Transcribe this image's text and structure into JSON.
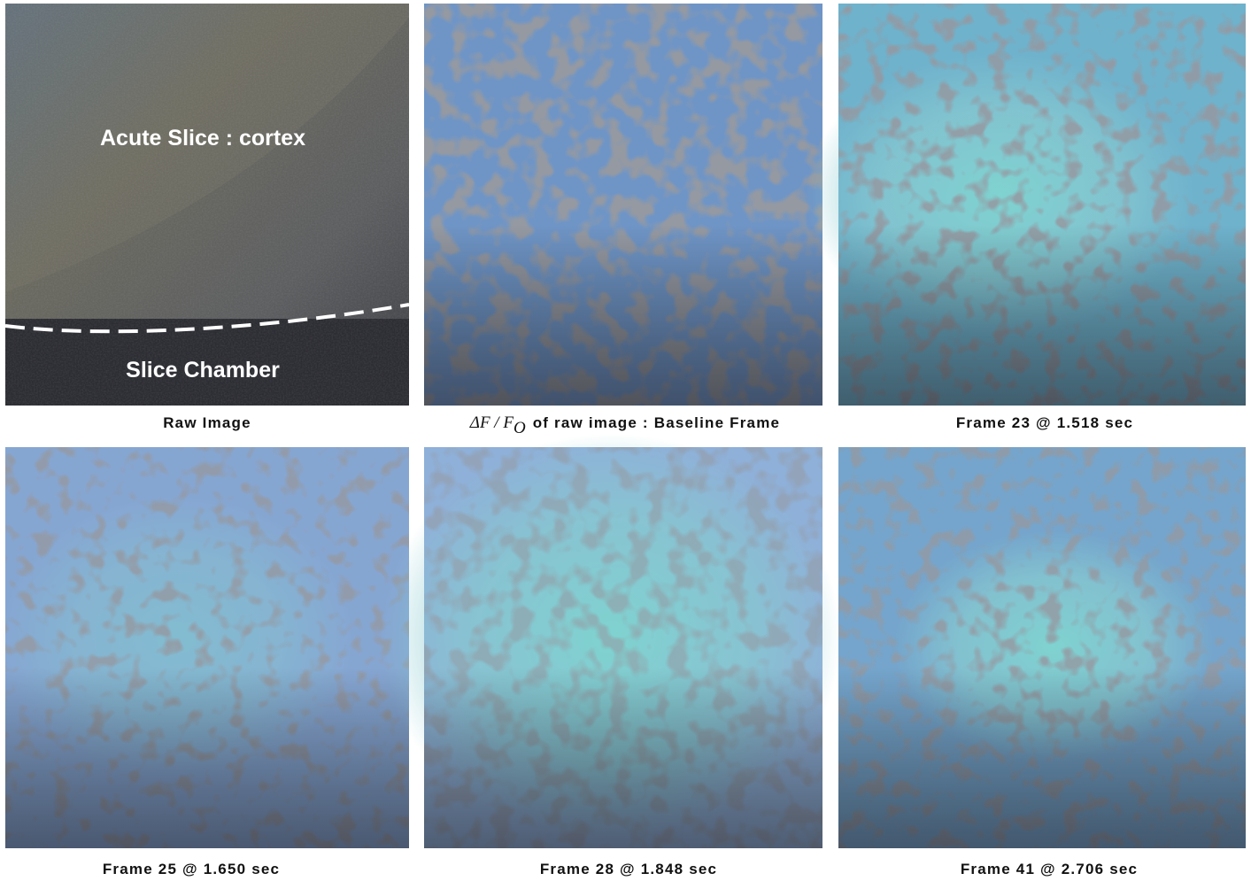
{
  "panels": [
    {
      "caption": {
        "text": "Raw Image"
      },
      "labels": [
        "Acute Slice : cortex",
        "Slice Chamber"
      ]
    },
    {
      "caption": {
        "math": "ΔF / F",
        "sub": "O",
        "text": "of raw image : Baseline Frame"
      }
    },
    {
      "caption": {
        "text": "Frame 23 @ 1.518 sec"
      }
    },
    {
      "caption": {
        "text": "Frame 25 @ 1.650 sec"
      }
    },
    {
      "caption": {
        "text": "Frame 28 @ 1.848 sec"
      }
    },
    {
      "caption": {
        "text": "Frame 41 @ 2.706 sec"
      }
    }
  ]
}
